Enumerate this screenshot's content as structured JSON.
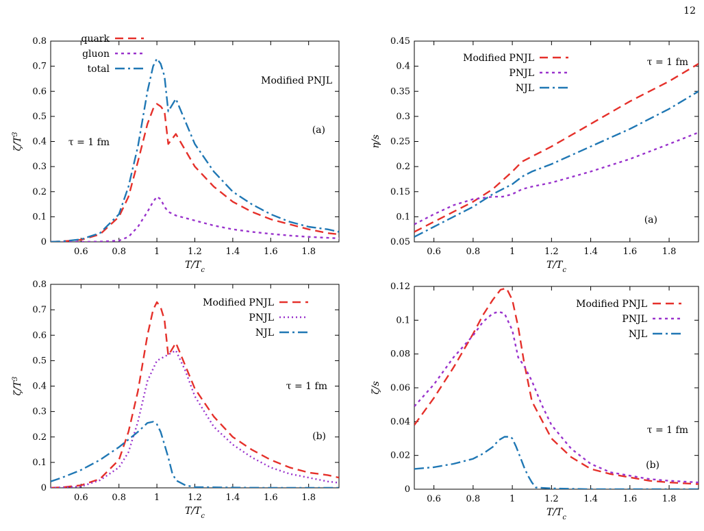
{
  "page_number": "12",
  "colors": {
    "red": "#e5302a",
    "purple": "#9932cc",
    "blue": "#1f77b4"
  },
  "chart_data": [
    {
      "id": "tl",
      "type": "line",
      "xlabel": "T/T_c",
      "ylabel": "ζ/T^3",
      "xlim": [
        0.44,
        1.96
      ],
      "ylim": [
        0,
        0.8
      ],
      "xticks": [
        0.6,
        0.8,
        1,
        1.2,
        1.4,
        1.6,
        1.8
      ],
      "xtick_labels": [
        "0.6",
        "0.8",
        "1",
        "1.2",
        "1.4",
        "1.6",
        "1.8"
      ],
      "yticks": [
        0,
        0.1,
        0.2,
        0.3,
        0.4,
        0.5,
        0.6,
        0.7,
        0.8
      ],
      "ytick_labels": [
        "0",
        "0.1",
        "0.2",
        "0.3",
        "0.4",
        "0.5",
        "0.6",
        "0.7",
        "0.8"
      ],
      "legend_position": "top-left",
      "annotations": [
        "Modified PNJL",
        "(a)",
        "τ = 1 fm"
      ],
      "series": [
        {
          "name": "quark",
          "color": "#e5302a",
          "dash": "12,7",
          "x": [
            0.44,
            0.5,
            0.6,
            0.7,
            0.8,
            0.85,
            0.9,
            0.95,
            0.98,
            1.0,
            1.02,
            1.04,
            1.06,
            1.1,
            1.2,
            1.3,
            1.4,
            1.5,
            1.6,
            1.7,
            1.8,
            1.9,
            1.96
          ],
          "y": [
            0.0,
            0.002,
            0.008,
            0.03,
            0.1,
            0.18,
            0.32,
            0.47,
            0.53,
            0.55,
            0.54,
            0.52,
            0.39,
            0.43,
            0.3,
            0.22,
            0.16,
            0.12,
            0.09,
            0.07,
            0.05,
            0.035,
            0.03
          ]
        },
        {
          "name": "gluon",
          "color": "#9932cc",
          "dash": "4,5",
          "x": [
            0.44,
            0.6,
            0.7,
            0.8,
            0.85,
            0.9,
            0.95,
            0.98,
            1.0,
            1.02,
            1.04,
            1.06,
            1.1,
            1.2,
            1.3,
            1.4,
            1.5,
            1.6,
            1.7,
            1.8,
            1.9,
            1.96
          ],
          "y": [
            0.0,
            0.0,
            0.001,
            0.005,
            0.02,
            0.06,
            0.12,
            0.16,
            0.18,
            0.17,
            0.14,
            0.12,
            0.105,
            0.085,
            0.065,
            0.05,
            0.04,
            0.032,
            0.025,
            0.02,
            0.016,
            0.014
          ]
        },
        {
          "name": "total",
          "color": "#1f77b4",
          "dash": "14,5,3,5",
          "x": [
            0.44,
            0.5,
            0.6,
            0.7,
            0.8,
            0.85,
            0.9,
            0.95,
            0.98,
            1.0,
            1.02,
            1.04,
            1.06,
            1.1,
            1.2,
            1.3,
            1.4,
            1.5,
            1.6,
            1.7,
            1.8,
            1.9,
            1.96
          ],
          "y": [
            0.0,
            0.002,
            0.01,
            0.035,
            0.11,
            0.22,
            0.38,
            0.6,
            0.7,
            0.73,
            0.71,
            0.66,
            0.52,
            0.57,
            0.39,
            0.28,
            0.2,
            0.15,
            0.11,
            0.08,
            0.06,
            0.05,
            0.04
          ]
        }
      ]
    },
    {
      "id": "tr",
      "type": "line",
      "xlabel": "T/T_c",
      "ylabel": "η/s",
      "xlim": [
        0.5,
        1.95
      ],
      "ylim": [
        0.05,
        0.45
      ],
      "xticks": [
        0.6,
        0.8,
        1,
        1.2,
        1.4,
        1.6,
        1.8
      ],
      "xtick_labels": [
        "0.6",
        "0.8",
        "1",
        "1.2",
        "1.4",
        "1.6",
        "1.8"
      ],
      "yticks": [
        0.05,
        0.1,
        0.15,
        0.2,
        0.25,
        0.3,
        0.35,
        0.4,
        0.45
      ],
      "ytick_labels": [
        "0.05",
        "0.1",
        "0.15",
        "0.2",
        "0.25",
        "0.3",
        "0.35",
        "0.4",
        "0.45"
      ],
      "legend_position": "top-left",
      "annotations": [
        "τ = 1 fm",
        "(a)"
      ],
      "series": [
        {
          "name": "Modified PNJL",
          "color": "#e5302a",
          "dash": "12,7",
          "x": [
            0.5,
            0.6,
            0.7,
            0.8,
            0.9,
            1.0,
            1.05,
            1.1,
            1.2,
            1.4,
            1.6,
            1.8,
            1.95
          ],
          "y": [
            0.07,
            0.09,
            0.11,
            0.13,
            0.155,
            0.19,
            0.21,
            0.22,
            0.24,
            0.285,
            0.33,
            0.37,
            0.405
          ]
        },
        {
          "name": "PNJL",
          "color": "#9932cc",
          "dash": "4,5",
          "x": [
            0.5,
            0.6,
            0.7,
            0.8,
            0.9,
            0.95,
            1.0,
            1.05,
            1.1,
            1.2,
            1.4,
            1.6,
            1.8,
            1.95
          ],
          "y": [
            0.085,
            0.105,
            0.123,
            0.135,
            0.14,
            0.14,
            0.145,
            0.155,
            0.16,
            0.168,
            0.19,
            0.215,
            0.245,
            0.268
          ]
        },
        {
          "name": "NJL",
          "color": "#1f77b4",
          "dash": "14,5,3,5",
          "x": [
            0.5,
            0.6,
            0.7,
            0.8,
            0.9,
            1.0,
            1.05,
            1.1,
            1.2,
            1.4,
            1.6,
            1.8,
            1.95
          ],
          "y": [
            0.06,
            0.08,
            0.1,
            0.12,
            0.145,
            0.165,
            0.18,
            0.19,
            0.205,
            0.24,
            0.275,
            0.315,
            0.35
          ]
        }
      ]
    },
    {
      "id": "bl",
      "type": "line",
      "xlabel": "T/T_c",
      "ylabel": "ζ/T^3",
      "xlim": [
        0.44,
        1.96
      ],
      "ylim": [
        0,
        0.8
      ],
      "xticks": [
        0.6,
        0.8,
        1,
        1.2,
        1.4,
        1.6,
        1.8
      ],
      "xtick_labels": [
        "0.6",
        "0.8",
        "1",
        "1.2",
        "1.4",
        "1.6",
        "1.8"
      ],
      "yticks": [
        0,
        0.1,
        0.2,
        0.3,
        0.4,
        0.5,
        0.6,
        0.7,
        0.8
      ],
      "ytick_labels": [
        "0",
        "0.1",
        "0.2",
        "0.3",
        "0.4",
        "0.5",
        "0.6",
        "0.7",
        "0.8"
      ],
      "legend_position": "top-right",
      "annotations": [
        "τ = 1 fm",
        "(b)"
      ],
      "series": [
        {
          "name": "Modified PNJL",
          "color": "#e5302a",
          "dash": "12,7",
          "x": [
            0.44,
            0.5,
            0.6,
            0.7,
            0.8,
            0.85,
            0.9,
            0.95,
            0.98,
            1.0,
            1.02,
            1.04,
            1.06,
            1.1,
            1.2,
            1.3,
            1.4,
            1.5,
            1.6,
            1.7,
            1.8,
            1.9,
            1.96
          ],
          "y": [
            0.0,
            0.002,
            0.01,
            0.035,
            0.11,
            0.22,
            0.38,
            0.6,
            0.7,
            0.73,
            0.71,
            0.66,
            0.52,
            0.57,
            0.39,
            0.28,
            0.2,
            0.15,
            0.11,
            0.08,
            0.06,
            0.05,
            0.04
          ]
        },
        {
          "name": "PNJL",
          "color": "#9932cc",
          "dash": "2,4",
          "x": [
            0.44,
            0.6,
            0.7,
            0.8,
            0.85,
            0.9,
            0.95,
            1.0,
            1.05,
            1.1,
            1.15,
            1.2,
            1.3,
            1.4,
            1.5,
            1.6,
            1.7,
            1.8,
            1.9,
            1.96
          ],
          "y": [
            0.0,
            0.005,
            0.03,
            0.08,
            0.14,
            0.26,
            0.42,
            0.5,
            0.52,
            0.54,
            0.46,
            0.36,
            0.24,
            0.17,
            0.12,
            0.08,
            0.055,
            0.04,
            0.025,
            0.02
          ]
        },
        {
          "name": "NJL",
          "color": "#1f77b4",
          "dash": "14,5,3,5",
          "x": [
            0.44,
            0.5,
            0.6,
            0.7,
            0.8,
            0.85,
            0.9,
            0.95,
            0.98,
            1.0,
            1.02,
            1.04,
            1.06,
            1.08,
            1.1,
            1.15,
            1.2,
            1.4,
            1.6,
            1.8,
            1.96
          ],
          "y": [
            0.025,
            0.04,
            0.07,
            0.11,
            0.16,
            0.19,
            0.22,
            0.255,
            0.26,
            0.25,
            0.22,
            0.17,
            0.12,
            0.06,
            0.03,
            0.01,
            0.003,
            0.001,
            0.0,
            0.0,
            0.0
          ]
        }
      ]
    },
    {
      "id": "br",
      "type": "line",
      "xlabel": "T/T_c",
      "ylabel": "ζ/s",
      "xlim": [
        0.5,
        1.95
      ],
      "ylim": [
        0,
        0.12
      ],
      "xticks": [
        0.6,
        0.8,
        1,
        1.2,
        1.4,
        1.6,
        1.8
      ],
      "xtick_labels": [
        "0.6",
        "0.8",
        "1",
        "1.2",
        "1.4",
        "1.6",
        "1.8"
      ],
      "yticks": [
        0,
        0.02,
        0.04,
        0.06,
        0.08,
        0.1,
        0.12
      ],
      "ytick_labels": [
        "0",
        "0.02",
        "0.04",
        "0.06",
        "0.08",
        "0.1",
        "0.12"
      ],
      "legend_position": "top-right",
      "annotations": [
        "τ = 1 fm",
        "(b)"
      ],
      "series": [
        {
          "name": "Modified PNJL",
          "color": "#e5302a",
          "dash": "12,7",
          "x": [
            0.5,
            0.6,
            0.7,
            0.8,
            0.85,
            0.9,
            0.94,
            0.97,
            1.0,
            1.03,
            1.06,
            1.1,
            1.2,
            1.3,
            1.4,
            1.5,
            1.6,
            1.7,
            1.8,
            1.95
          ],
          "y": [
            0.038,
            0.054,
            0.072,
            0.092,
            0.103,
            0.112,
            0.118,
            0.119,
            0.112,
            0.096,
            0.075,
            0.052,
            0.03,
            0.019,
            0.012,
            0.009,
            0.007,
            0.005,
            0.004,
            0.003
          ]
        },
        {
          "name": "PNJL",
          "color": "#9932cc",
          "dash": "4,5",
          "x": [
            0.5,
            0.6,
            0.7,
            0.8,
            0.85,
            0.9,
            0.93,
            0.96,
            1.0,
            1.03,
            1.06,
            1.1,
            1.15,
            1.2,
            1.3,
            1.4,
            1.5,
            1.6,
            1.7,
            1.8,
            1.95
          ],
          "y": [
            0.049,
            0.062,
            0.078,
            0.091,
            0.099,
            0.104,
            0.105,
            0.104,
            0.094,
            0.078,
            0.073,
            0.064,
            0.05,
            0.038,
            0.024,
            0.015,
            0.01,
            0.008,
            0.006,
            0.005,
            0.004
          ]
        },
        {
          "name": "NJL",
          "color": "#1f77b4",
          "dash": "14,5,3,5",
          "x": [
            0.5,
            0.6,
            0.7,
            0.8,
            0.85,
            0.9,
            0.93,
            0.96,
            0.99,
            1.0,
            1.02,
            1.04,
            1.06,
            1.08,
            1.1,
            1.12,
            1.2,
            1.4,
            1.6,
            1.8,
            1.95
          ],
          "y": [
            0.012,
            0.013,
            0.015,
            0.018,
            0.021,
            0.025,
            0.029,
            0.031,
            0.031,
            0.03,
            0.025,
            0.019,
            0.013,
            0.008,
            0.004,
            0.001,
            0.0005,
            0.0,
            0.0,
            0.0,
            0.0
          ]
        }
      ]
    }
  ]
}
